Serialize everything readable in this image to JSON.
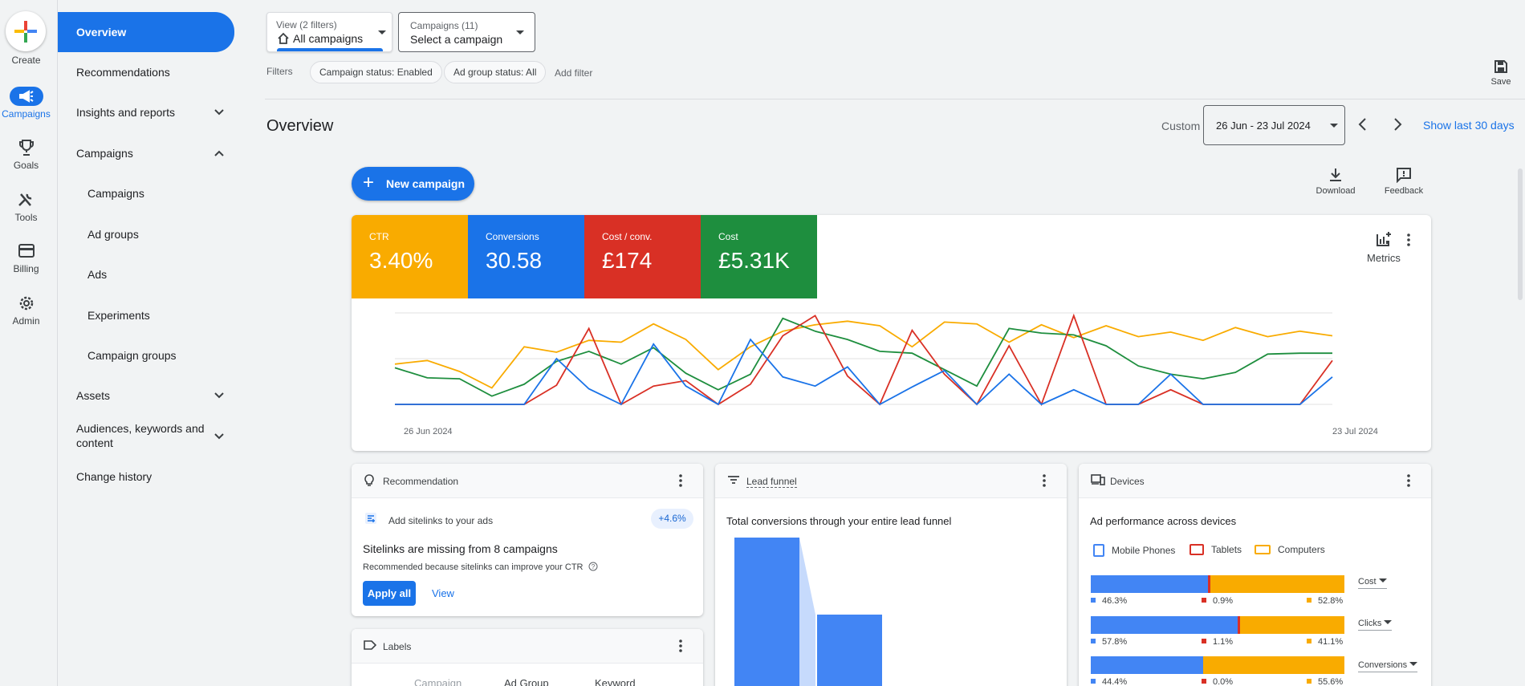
{
  "rail": {
    "create": "Create",
    "campaigns": "Campaigns",
    "goals": "Goals",
    "tools": "Tools",
    "billing": "Billing",
    "admin": "Admin"
  },
  "nav": {
    "overview": "Overview",
    "recommendations": "Recommendations",
    "insights": "Insights and reports",
    "campaigns": "Campaigns",
    "sub_campaigns": "Campaigns",
    "ad_groups": "Ad groups",
    "ads": "Ads",
    "experiments": "Experiments",
    "campaign_groups": "Campaign groups",
    "assets": "Assets",
    "audiences_line1": "Audiences, keywords and",
    "audiences_line2": "content",
    "change_history": "Change history"
  },
  "header": {
    "view_label": "View (2 filters)",
    "view_value": "All campaigns",
    "campaigns_label": "Campaigns (11)",
    "campaigns_value": "Select a campaign",
    "filters_label": "Filters",
    "chip1": "Campaign status: Enabled",
    "chip2": "Ad group status: All",
    "add_filter": "Add filter",
    "save": "Save"
  },
  "page": {
    "title": "Overview",
    "custom": "Custom",
    "date_range": "26 Jun - 23 Jul 2024",
    "show_last": "Show last 30 days",
    "new_campaign": "New campaign",
    "download": "Download",
    "feedback": "Feedback"
  },
  "scorecards": [
    {
      "label": "CTR",
      "value": "3.40%",
      "color": "#f9ab00"
    },
    {
      "label": "Conversions",
      "value": "30.58",
      "color": "#1a73e8"
    },
    {
      "label": "Cost / conv.",
      "value": "£174",
      "color": "#d93025"
    },
    {
      "label": "Cost",
      "value": "£5.31K",
      "color": "#1e8e3e"
    }
  ],
  "metrics_label": "Metrics",
  "chart_data": {
    "type": "line",
    "x_start_label": "26 Jun 2024",
    "x_end_label": "23 Jul 2024",
    "ylim": [
      0,
      100
    ],
    "series": [
      {
        "color": "#f9ab00",
        "values": [
          44,
          48,
          36,
          18,
          63,
          57,
          70,
          68,
          88,
          71,
          38,
          63,
          80,
          87,
          91,
          86,
          63,
          90,
          88,
          68,
          87,
          73,
          86,
          74,
          79,
          70,
          84,
          74,
          80,
          75
        ]
      },
      {
        "color": "#1e8e3e",
        "values": [
          40,
          29,
          28,
          9,
          22,
          47,
          58,
          44,
          62,
          34,
          16,
          33,
          94,
          80,
          71,
          58,
          56,
          38,
          20,
          83,
          78,
          76,
          64,
          42,
          33,
          28,
          35,
          55,
          56,
          56
        ]
      },
      {
        "color": "#d93025",
        "values": [
          0,
          0,
          0,
          0,
          0,
          21,
          83,
          0,
          20,
          26,
          0,
          22,
          75,
          97,
          31,
          0,
          81,
          33,
          0,
          64,
          0,
          97,
          0,
          0,
          16,
          0,
          0,
          0,
          0,
          48
        ]
      },
      {
        "color": "#1a73e8",
        "values": [
          0,
          0,
          0,
          0,
          0,
          50,
          17,
          0,
          66,
          20,
          0,
          71,
          30,
          20,
          41,
          0,
          19,
          37,
          0,
          33,
          0,
          16,
          0,
          0,
          33,
          0,
          0,
          0,
          0,
          30
        ]
      }
    ]
  },
  "recommendation": {
    "header": "Recommendation",
    "item": "Add sitelinks to your ads",
    "badge": "+4.6%",
    "title": "Sitelinks are missing from 8 campaigns",
    "desc": "Recommended because sitelinks can improve your CTR",
    "apply": "Apply all",
    "view": "View"
  },
  "labels_card": {
    "header": "Labels",
    "tab1": "Campaign",
    "tab2": "Ad Group",
    "tab3": "Keyword"
  },
  "funnel": {
    "header": "Lead funnel",
    "title": "Total conversions through your entire lead funnel",
    "colors": {
      "primary": "#4285f4",
      "connector": "#c6dafc"
    }
  },
  "devices": {
    "header": "Devices",
    "title": "Ad performance across devices",
    "legend": [
      "Mobile Phones",
      "Tablets",
      "Computers"
    ],
    "colors": [
      "#4285f4",
      "#d93025",
      "#f9ab00"
    ],
    "rows": [
      {
        "metric": "Cost",
        "values": [
          46.3,
          0.9,
          52.8
        ],
        "labels": [
          "46.3%",
          "0.9%",
          "52.8%"
        ]
      },
      {
        "metric": "Clicks",
        "values": [
          57.8,
          1.1,
          41.1
        ],
        "labels": [
          "57.8%",
          "1.1%",
          "41.1%"
        ]
      },
      {
        "metric": "Conversions",
        "values": [
          44.4,
          0.0,
          55.6
        ],
        "labels": [
          "44.4%",
          "0.0%",
          "55.6%"
        ]
      }
    ]
  }
}
